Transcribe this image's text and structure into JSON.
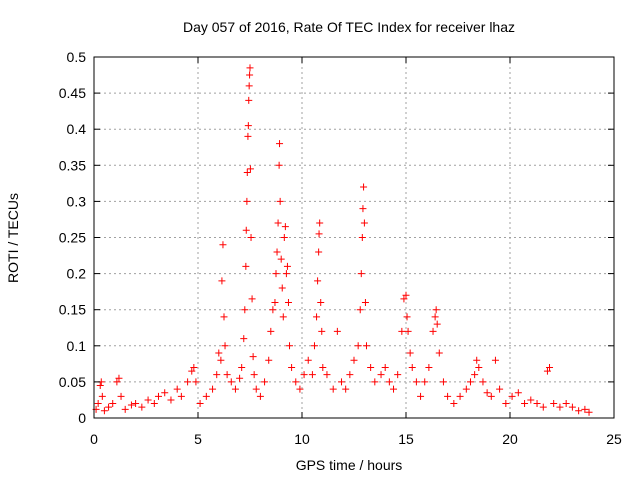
{
  "chart_data": {
    "type": "scatter",
    "title": "Day 057 of 2016, Rate Of TEC Index for receiver lhaz",
    "xlabel": "GPS time / hours",
    "ylabel": "ROTI / TECUs",
    "xlim": [
      0,
      25
    ],
    "ylim": [
      0,
      0.5
    ],
    "xticks": [
      0,
      5,
      10,
      15,
      20,
      25
    ],
    "yticks": [
      0,
      0.05,
      0.1,
      0.15,
      0.2,
      0.25,
      0.3,
      0.35,
      0.4,
      0.45,
      0.5
    ],
    "xtick_labels": [
      "0",
      "5",
      "10",
      "15",
      "20",
      "25"
    ],
    "ytick_labels": [
      "0",
      "0.05",
      "0.1",
      "0.15",
      "0.2",
      "0.25",
      "0.3",
      "0.35",
      "0.4",
      "0.45",
      "0.5"
    ],
    "grid": true,
    "marker": "plus",
    "color": "#ff0000",
    "series": [
      {
        "points": [
          [
            0.1,
            0.012
          ],
          [
            0.2,
            0.02
          ],
          [
            0.3,
            0.045
          ],
          [
            0.35,
            0.05
          ],
          [
            0.4,
            0.03
          ],
          [
            0.5,
            0.01
          ],
          [
            0.7,
            0.015
          ],
          [
            0.9,
            0.02
          ],
          [
            1.1,
            0.05
          ],
          [
            1.2,
            0.055
          ],
          [
            1.3,
            0.03
          ],
          [
            1.5,
            0.012
          ],
          [
            1.8,
            0.018
          ],
          [
            2.0,
            0.02
          ],
          [
            2.3,
            0.015
          ],
          [
            2.6,
            0.025
          ],
          [
            2.9,
            0.02
          ],
          [
            3.1,
            0.03
          ],
          [
            3.4,
            0.035
          ],
          [
            3.7,
            0.025
          ],
          [
            4.0,
            0.04
          ],
          [
            4.2,
            0.03
          ],
          [
            4.5,
            0.05
          ],
          [
            4.7,
            0.065
          ],
          [
            4.8,
            0.07
          ],
          [
            4.9,
            0.05
          ],
          [
            5.1,
            0.02
          ],
          [
            5.4,
            0.03
          ],
          [
            5.7,
            0.04
          ],
          [
            5.9,
            0.06
          ],
          [
            6.0,
            0.09
          ],
          [
            6.1,
            0.08
          ],
          [
            6.15,
            0.19
          ],
          [
            6.2,
            0.24
          ],
          [
            6.25,
            0.14
          ],
          [
            6.3,
            0.1
          ],
          [
            6.4,
            0.06
          ],
          [
            6.6,
            0.05
          ],
          [
            6.8,
            0.04
          ],
          [
            7.0,
            0.055
          ],
          [
            7.1,
            0.07
          ],
          [
            7.2,
            0.11
          ],
          [
            7.25,
            0.15
          ],
          [
            7.3,
            0.21
          ],
          [
            7.32,
            0.26
          ],
          [
            7.35,
            0.3
          ],
          [
            7.37,
            0.34
          ],
          [
            7.4,
            0.39
          ],
          [
            7.42,
            0.405
          ],
          [
            7.44,
            0.44
          ],
          [
            7.46,
            0.46
          ],
          [
            7.48,
            0.475
          ],
          [
            7.5,
            0.485
          ],
          [
            7.52,
            0.345
          ],
          [
            7.55,
            0.25
          ],
          [
            7.6,
            0.165
          ],
          [
            7.65,
            0.085
          ],
          [
            7.7,
            0.06
          ],
          [
            7.8,
            0.04
          ],
          [
            8.0,
            0.03
          ],
          [
            8.2,
            0.05
          ],
          [
            8.4,
            0.08
          ],
          [
            8.5,
            0.12
          ],
          [
            8.6,
            0.15
          ],
          [
            8.7,
            0.16
          ],
          [
            8.75,
            0.2
          ],
          [
            8.8,
            0.23
          ],
          [
            8.85,
            0.27
          ],
          [
            8.9,
            0.35
          ],
          [
            8.92,
            0.38
          ],
          [
            8.95,
            0.3
          ],
          [
            9.0,
            0.22
          ],
          [
            9.05,
            0.18
          ],
          [
            9.1,
            0.14
          ],
          [
            9.15,
            0.25
          ],
          [
            9.2,
            0.265
          ],
          [
            9.25,
            0.2
          ],
          [
            9.3,
            0.21
          ],
          [
            9.35,
            0.16
          ],
          [
            9.4,
            0.1
          ],
          [
            9.5,
            0.07
          ],
          [
            9.7,
            0.05
          ],
          [
            9.9,
            0.04
          ],
          [
            10.1,
            0.06
          ],
          [
            10.3,
            0.08
          ],
          [
            10.5,
            0.06
          ],
          [
            10.6,
            0.1
          ],
          [
            10.7,
            0.14
          ],
          [
            10.75,
            0.19
          ],
          [
            10.8,
            0.23
          ],
          [
            10.82,
            0.255
          ],
          [
            10.85,
            0.27
          ],
          [
            10.9,
            0.16
          ],
          [
            10.95,
            0.12
          ],
          [
            11.0,
            0.07
          ],
          [
            11.2,
            0.06
          ],
          [
            11.5,
            0.04
          ],
          [
            11.7,
            0.12
          ],
          [
            11.9,
            0.05
          ],
          [
            12.1,
            0.04
          ],
          [
            12.3,
            0.06
          ],
          [
            12.5,
            0.08
          ],
          [
            12.7,
            0.1
          ],
          [
            12.8,
            0.15
          ],
          [
            12.85,
            0.2
          ],
          [
            12.9,
            0.25
          ],
          [
            12.93,
            0.29
          ],
          [
            12.96,
            0.32
          ],
          [
            13.0,
            0.27
          ],
          [
            13.05,
            0.16
          ],
          [
            13.1,
            0.1
          ],
          [
            13.3,
            0.07
          ],
          [
            13.5,
            0.05
          ],
          [
            13.8,
            0.06
          ],
          [
            14.0,
            0.07
          ],
          [
            14.2,
            0.05
          ],
          [
            14.4,
            0.04
          ],
          [
            14.6,
            0.06
          ],
          [
            14.8,
            0.12
          ],
          [
            14.9,
            0.165
          ],
          [
            15.0,
            0.17
          ],
          [
            15.05,
            0.14
          ],
          [
            15.1,
            0.12
          ],
          [
            15.2,
            0.09
          ],
          [
            15.3,
            0.07
          ],
          [
            15.5,
            0.05
          ],
          [
            15.7,
            0.03
          ],
          [
            15.9,
            0.05
          ],
          [
            16.1,
            0.07
          ],
          [
            16.3,
            0.12
          ],
          [
            16.4,
            0.14
          ],
          [
            16.45,
            0.15
          ],
          [
            16.5,
            0.13
          ],
          [
            16.6,
            0.09
          ],
          [
            16.8,
            0.05
          ],
          [
            17.0,
            0.03
          ],
          [
            17.3,
            0.02
          ],
          [
            17.6,
            0.03
          ],
          [
            17.9,
            0.04
          ],
          [
            18.1,
            0.05
          ],
          [
            18.3,
            0.06
          ],
          [
            18.4,
            0.08
          ],
          [
            18.5,
            0.07
          ],
          [
            18.7,
            0.05
          ],
          [
            18.9,
            0.035
          ],
          [
            19.1,
            0.03
          ],
          [
            19.3,
            0.08
          ],
          [
            19.5,
            0.04
          ],
          [
            19.8,
            0.02
          ],
          [
            20.1,
            0.03
          ],
          [
            20.4,
            0.035
          ],
          [
            20.7,
            0.02
          ],
          [
            21.0,
            0.025
          ],
          [
            21.3,
            0.02
          ],
          [
            21.6,
            0.015
          ],
          [
            21.8,
            0.065
          ],
          [
            21.9,
            0.07
          ],
          [
            22.1,
            0.02
          ],
          [
            22.4,
            0.015
          ],
          [
            22.7,
            0.02
          ],
          [
            23.0,
            0.015
          ],
          [
            23.3,
            0.01
          ],
          [
            23.6,
            0.012
          ],
          [
            23.8,
            0.008
          ]
        ]
      }
    ]
  }
}
